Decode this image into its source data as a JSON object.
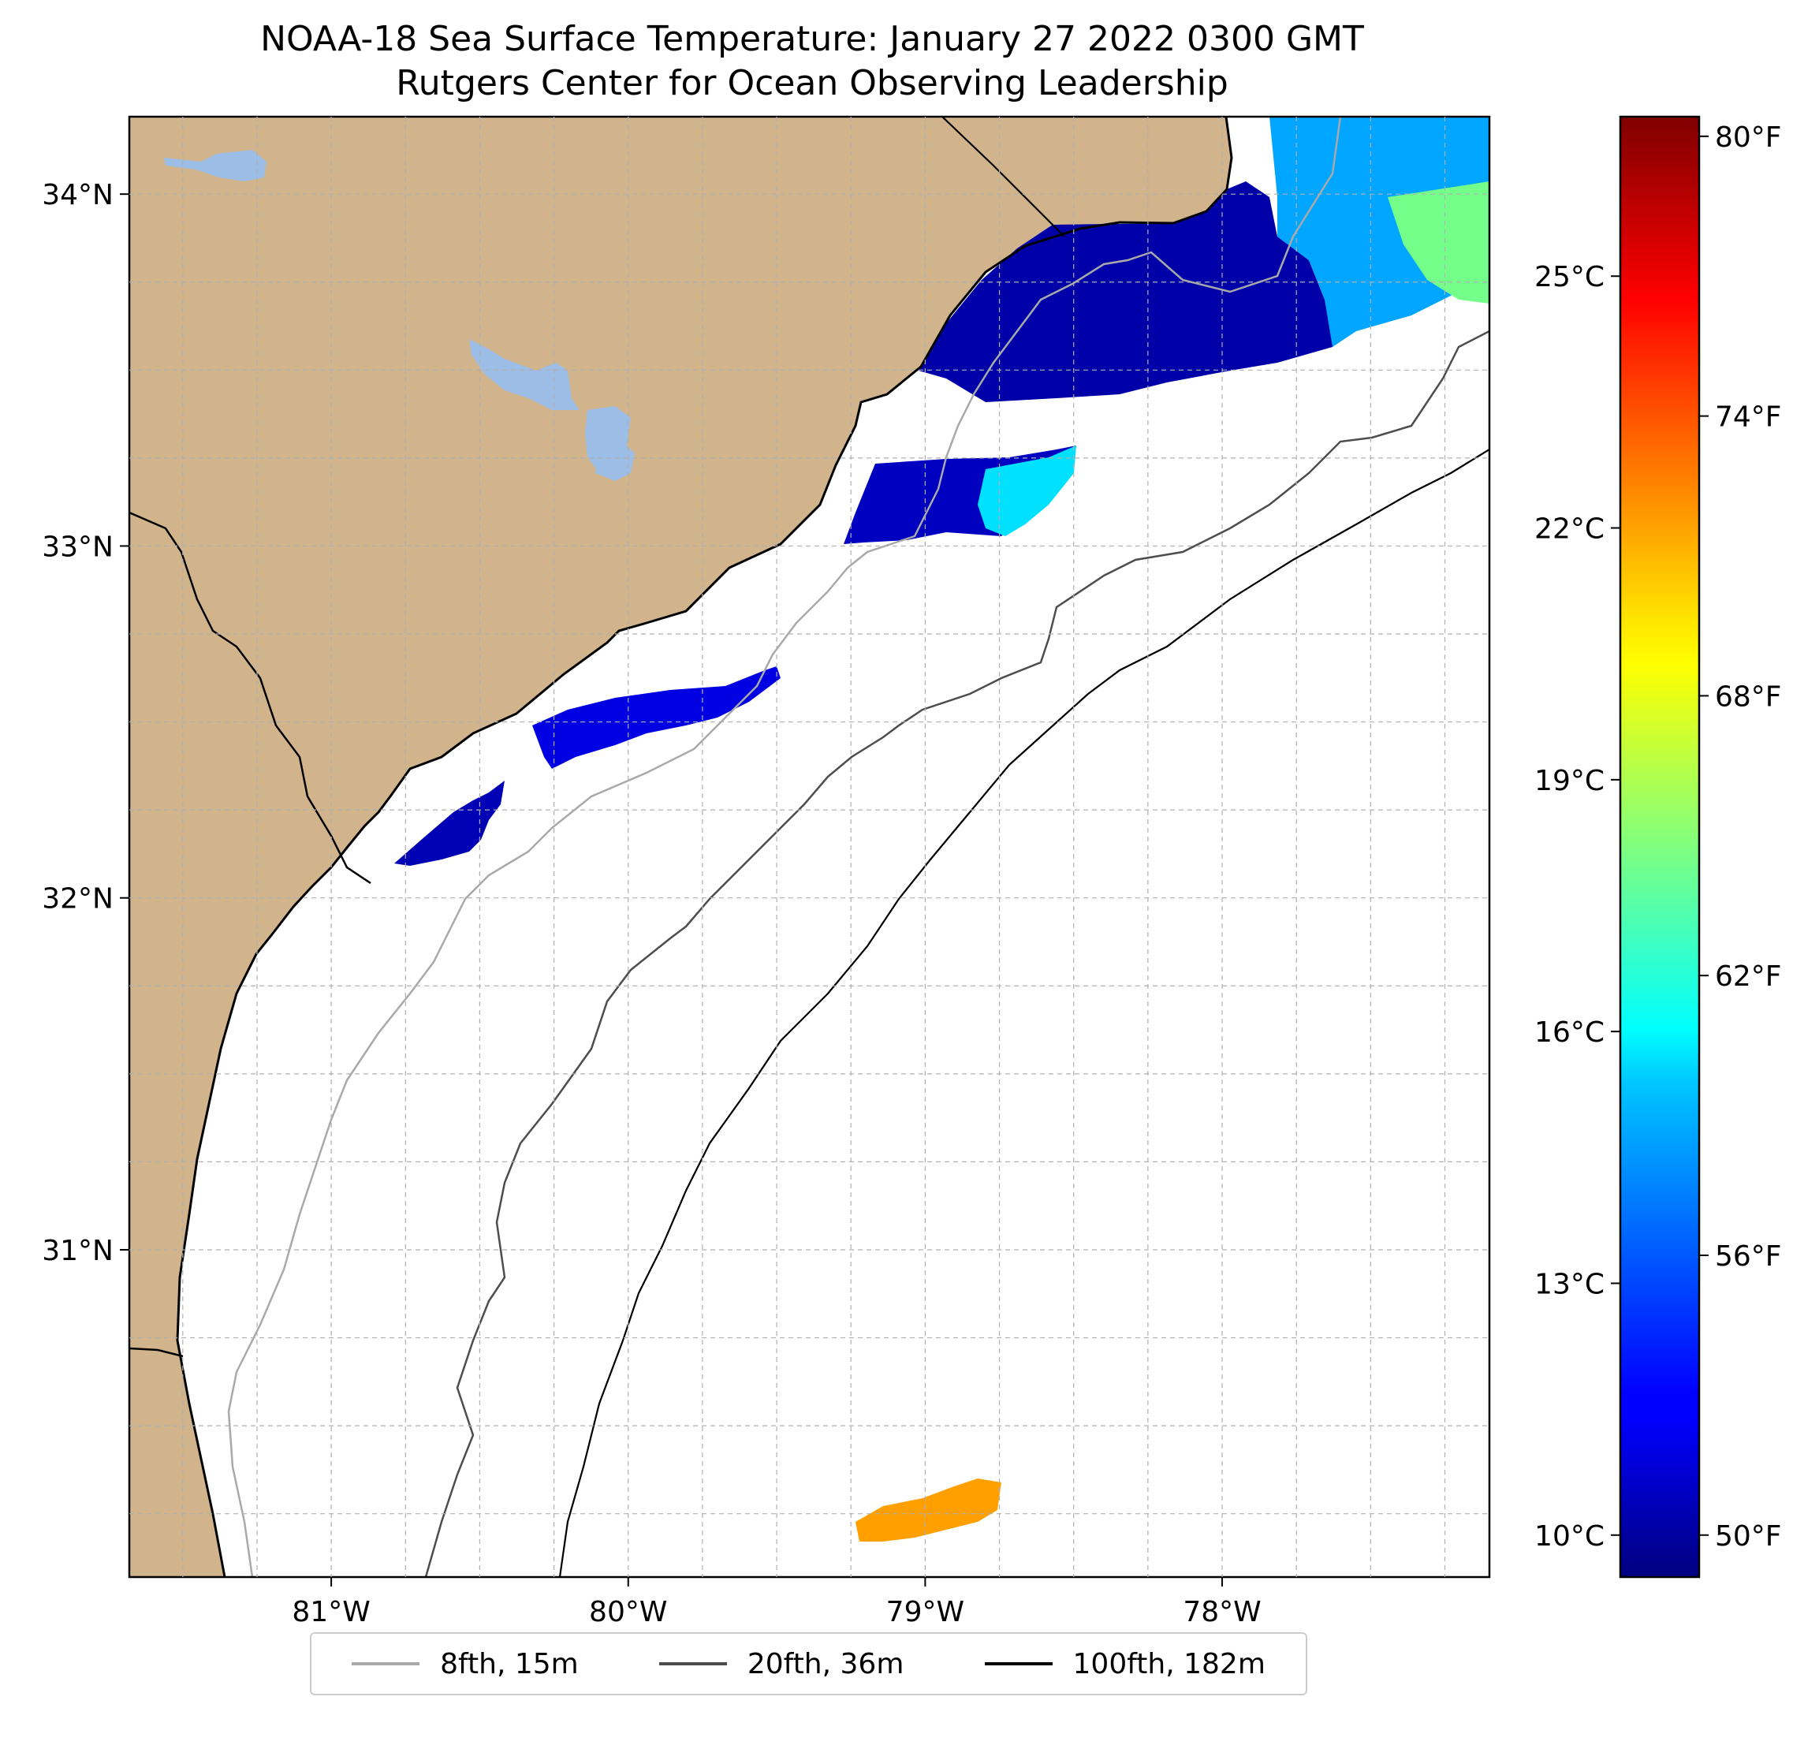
{
  "title": "NOAA-18 Sea Surface Temperature: January 27 2022 0300 GMT",
  "subtitle": "Rutgers Center for Ocean Observing Leadership",
  "map": {
    "extent": {
      "lon": [
        -81.68,
        -77.1
      ],
      "lat": [
        30.07,
        34.22
      ]
    },
    "lat_ticks": [
      {
        "value": 34,
        "label": "34°N"
      },
      {
        "value": 33,
        "label": "33°N"
      },
      {
        "value": 32,
        "label": "32°N"
      },
      {
        "value": 31,
        "label": "31°N"
      }
    ],
    "lon_ticks": [
      {
        "value": -81,
        "label": "81°W"
      },
      {
        "value": -80,
        "label": "80°W"
      },
      {
        "value": -79,
        "label": "79°W"
      },
      {
        "value": -78,
        "label": "78°W"
      }
    ],
    "land_color": "#d2b48c",
    "water_color": "#9bbde6",
    "ocean_color": "#ffffff",
    "grid": true
  },
  "colorbar": {
    "colormap": "jet",
    "celsius_range": [
      9.5,
      26.9
    ],
    "celsius_ticks": [
      {
        "value": 25,
        "label": "25°C"
      },
      {
        "value": 22,
        "label": "22°C"
      },
      {
        "value": 19,
        "label": "19°C"
      },
      {
        "value": 16,
        "label": "16°C"
      },
      {
        "value": 13,
        "label": "13°C"
      },
      {
        "value": 10,
        "label": "10°C"
      }
    ],
    "fahrenheit_ticks": [
      {
        "value": 80,
        "label": "80°F"
      },
      {
        "value": 74,
        "label": "74°F"
      },
      {
        "value": 68,
        "label": "68°F"
      },
      {
        "value": 62,
        "label": "62°F"
      },
      {
        "value": 56,
        "label": "56°F"
      },
      {
        "value": 50,
        "label": "50°F"
      }
    ]
  },
  "legend": {
    "items": [
      {
        "label": "8fth, 15m",
        "color": "#a9a9a9"
      },
      {
        "label": "20fth, 36m",
        "color": "#4d4d4d"
      },
      {
        "label": "100fth, 182m",
        "color": "#000000"
      }
    ]
  },
  "sst_patches": [
    {
      "name": "sst-patch-long-bay",
      "temp_c": 10.2
    },
    {
      "name": "sst-patch-offshore-ne",
      "temp_c": 14.5
    },
    {
      "name": "sst-patch-offshore-warm",
      "temp_c": 18.0
    },
    {
      "name": "sst-patch-cape-romain",
      "temp_c": 10.6
    },
    {
      "name": "sst-patch-bulls-bay-offshore",
      "temp_c": 15.5
    },
    {
      "name": "sst-patch-charleston",
      "temp_c": 11.2
    },
    {
      "name": "sst-patch-edisto",
      "temp_c": 10.4
    },
    {
      "name": "sst-patch-south-warm",
      "temp_c": 22.0
    }
  ]
}
